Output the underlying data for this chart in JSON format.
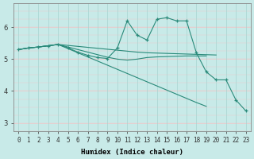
{
  "xlabel": "Humidex (Indice chaleur)",
  "x_values": [
    0,
    1,
    2,
    3,
    4,
    5,
    6,
    7,
    8,
    9,
    10,
    11,
    12,
    13,
    14,
    15,
    16,
    17,
    18,
    19,
    20,
    21,
    22,
    23
  ],
  "series": [
    {
      "name": "flat_line",
      "y": [
        5.3,
        5.35,
        5.38,
        5.42,
        5.46,
        5.43,
        5.4,
        5.37,
        5.34,
        5.31,
        5.28,
        5.25,
        5.22,
        5.2,
        5.19,
        5.18,
        5.17,
        5.16,
        5.15,
        5.14,
        5.13,
        null,
        null,
        null
      ],
      "marker": false,
      "end": 20
    },
    {
      "name": "medium_decline",
      "y": [
        5.3,
        5.35,
        5.38,
        5.42,
        5.46,
        5.38,
        5.3,
        5.22,
        5.14,
        5.06,
        5.0,
        4.97,
        5.0,
        5.05,
        5.07,
        5.08,
        5.09,
        5.1,
        5.1,
        5.1,
        null,
        null,
        null,
        null
      ],
      "marker": false,
      "end": 19
    },
    {
      "name": "steep_decline",
      "y": [
        5.3,
        5.35,
        5.38,
        5.42,
        5.46,
        5.33,
        5.2,
        5.07,
        4.94,
        4.81,
        4.68,
        4.55,
        4.42,
        4.29,
        4.16,
        4.03,
        3.9,
        3.77,
        3.64,
        3.52,
        null,
        null,
        null,
        null
      ],
      "marker": false,
      "end": 19
    },
    {
      "name": "humidex_curve",
      "y": [
        5.3,
        5.35,
        5.38,
        5.42,
        5.46,
        5.35,
        5.22,
        5.12,
        5.05,
        5.02,
        5.35,
        6.2,
        5.75,
        5.6,
        6.25,
        6.3,
        6.2,
        6.2,
        5.2,
        4.6,
        4.35,
        4.35,
        3.72,
        3.38
      ],
      "marker": true,
      "end": 23
    }
  ],
  "line_color": "#2a8a7a",
  "bg_color": "#c8eae8",
  "grid_color_h": "#f0c8c8",
  "grid_color_v": "#a8d4d0",
  "ylim": [
    2.75,
    6.75
  ],
  "xlim": [
    -0.5,
    23.5
  ],
  "yticks": [
    3,
    4,
    5,
    6
  ],
  "xticks": [
    0,
    1,
    2,
    3,
    4,
    5,
    6,
    7,
    8,
    9,
    10,
    11,
    12,
    13,
    14,
    15,
    16,
    17,
    18,
    19,
    20,
    21,
    22,
    23
  ],
  "tick_fontsize": 5.5,
  "xlabel_fontsize": 6.5
}
